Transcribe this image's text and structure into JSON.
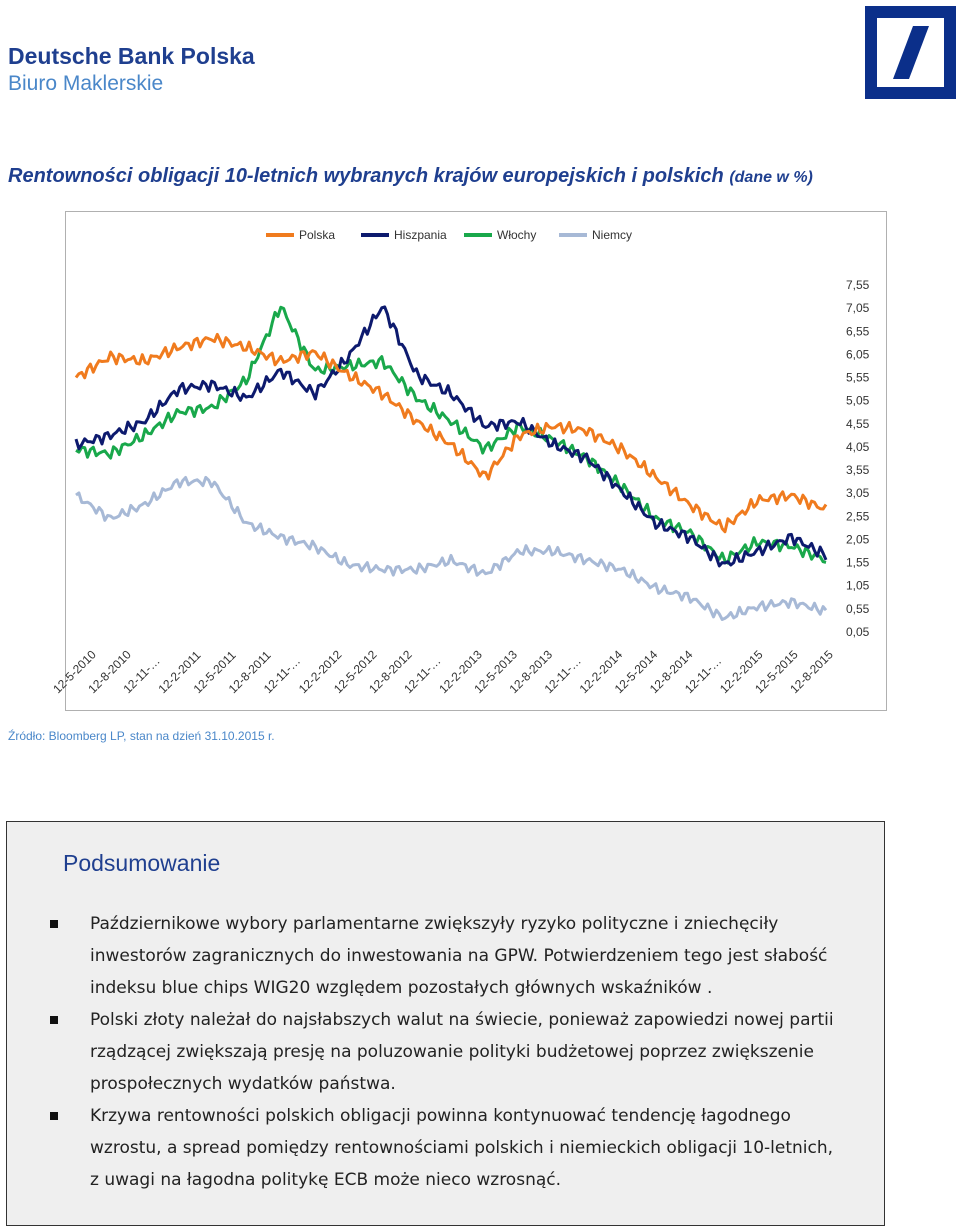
{
  "header": {
    "brand": "Deutsche Bank Polska",
    "subtitle": "Biuro Maklerskie"
  },
  "chart_title": {
    "main": "Rentowności obligacji 10-letnich wybranych krajów europejskich i polskich",
    "unit": "(dane w %)"
  },
  "chart_data": {
    "type": "line",
    "title": "Rentowności obligacji 10-letnich wybranych krajów europejskich i polskich (dane w %)",
    "legend_position": "top",
    "y_axis_position": "right",
    "grid": false,
    "ylim": [
      0.05,
      7.55
    ],
    "y_ticks": [
      "7,55",
      "7,05",
      "6,55",
      "6,05",
      "5,55",
      "5,05",
      "4,55",
      "4,05",
      "3,55",
      "3,05",
      "2,55",
      "2,05",
      "1,55",
      "1,05",
      "0,55",
      "0,05"
    ],
    "x_ticks": [
      "12-5-2010",
      "12-8-2010",
      "12-11-…",
      "12-2-2011",
      "12-5-2011",
      "12-8-2011",
      "12-11-…",
      "12-2-2012",
      "12-5-2012",
      "12-8-2012",
      "12-11-…",
      "12-2-2013",
      "12-5-2013",
      "12-8-2013",
      "12-11-…",
      "12-2-2014",
      "12-5-2014",
      "12-8-2014",
      "12-11-…",
      "12-2-2015",
      "12-5-2015",
      "12-8-2015"
    ],
    "x": [
      "2010-05",
      "2010-08",
      "2010-11",
      "2011-02",
      "2011-05",
      "2011-08",
      "2011-11",
      "2012-02",
      "2012-05",
      "2012-08",
      "2012-11",
      "2013-02",
      "2013-05",
      "2013-08",
      "2013-11",
      "2014-02",
      "2014-05",
      "2014-08",
      "2014-11",
      "2015-02",
      "2015-05",
      "2015-08",
      "2015-10"
    ],
    "series": [
      {
        "name": "Polska",
        "color": "#f07b1e",
        "values": [
          5.55,
          6.0,
          5.9,
          6.2,
          6.4,
          6.2,
          5.9,
          6.1,
          5.6,
          5.2,
          4.6,
          4.1,
          3.4,
          4.3,
          4.5,
          4.4,
          4.0,
          3.4,
          2.8,
          2.3,
          2.9,
          3.0,
          2.7
        ]
      },
      {
        "name": "Hiszpania",
        "color": "#0d1a6e",
        "values": [
          4.1,
          4.3,
          4.6,
          5.3,
          5.4,
          5.1,
          5.7,
          5.2,
          6.0,
          7.1,
          5.6,
          5.2,
          4.5,
          4.6,
          4.1,
          3.8,
          3.1,
          2.4,
          2.1,
          1.5,
          1.8,
          2.1,
          1.7
        ]
      },
      {
        "name": "Włochy",
        "color": "#19a84b",
        "values": [
          4.0,
          3.9,
          4.3,
          4.8,
          4.9,
          5.5,
          7.1,
          5.7,
          5.8,
          5.9,
          5.1,
          4.6,
          4.0,
          4.5,
          4.2,
          3.8,
          3.2,
          2.5,
          2.2,
          1.6,
          2.0,
          1.9,
          1.6
        ]
      },
      {
        "name": "Niemcy",
        "color": "#a7b9d6",
        "values": [
          3.0,
          2.5,
          2.8,
          3.3,
          3.3,
          2.4,
          2.1,
          1.9,
          1.5,
          1.4,
          1.4,
          1.6,
          1.3,
          1.8,
          1.8,
          1.6,
          1.4,
          1.0,
          0.8,
          0.35,
          0.6,
          0.7,
          0.5
        ]
      }
    ]
  },
  "source": "Źródło: Bloomberg LP, stan na dzień 31.10.2015 r.",
  "summary": {
    "title": "Podsumowanie",
    "bullets": [
      "Październikowe wybory parlamentarne zwiększyły ryzyko polityczne i zniechęciły inwestorów zagranicznych do inwestowania na GPW. Potwierdzeniem tego jest słabość indeksu blue chips WIG20 względem pozostałych głównych wskaźników .",
      "Polski złoty należał do najsłabszych walut na świecie, ponieważ zapowiedzi nowej partii rządzącej zwiększają presję na poluzowanie polityki budżetowej poprzez zwiększenie prospołecznych wydatków państwa.",
      "Krzywa rentowności polskich obligacji powinna kontynuować tendencję łagodnego wzrostu, a spread pomiędzy rentownościami polskich i niemieckich obligacji 10-letnich, z uwagi na łagodna politykę ECB może nieco wzrosnąć."
    ]
  }
}
